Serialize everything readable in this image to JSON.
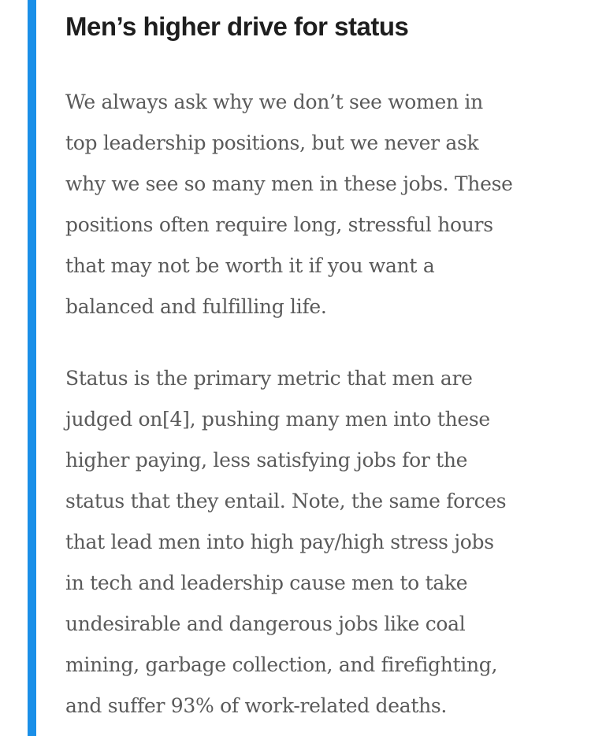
{
  "article": {
    "heading": "Men’s higher drive for status",
    "paragraphs": [
      {
        "lines": [
          "We always ask why we don’t see women in",
          "top leadership positions, but we never ask",
          "why we see so many men in these jobs. These",
          "positions often require long, stressful hours",
          "that may not be worth it if you want a",
          "balanced and fulfilling life."
        ]
      },
      {
        "lines": [
          "Status is the primary metric that men are",
          "judged on[4], pushing many men into these",
          "higher paying, less satisfying jobs for the",
          "status that they entail. Note, the same forces",
          "that lead men into high pay/high stress jobs",
          "in tech and leadership cause men to take",
          "undesirable and dangerous jobs like coal",
          "mining, garbage collection, and firefighting,",
          "and suffer 93% of work-related deaths."
        ]
      }
    ]
  },
  "colors": {
    "accent_bar": "#1a8fe8",
    "heading_text": "#1e1e1e",
    "body_text": "#5a5a5a",
    "background": "#ffffff"
  }
}
